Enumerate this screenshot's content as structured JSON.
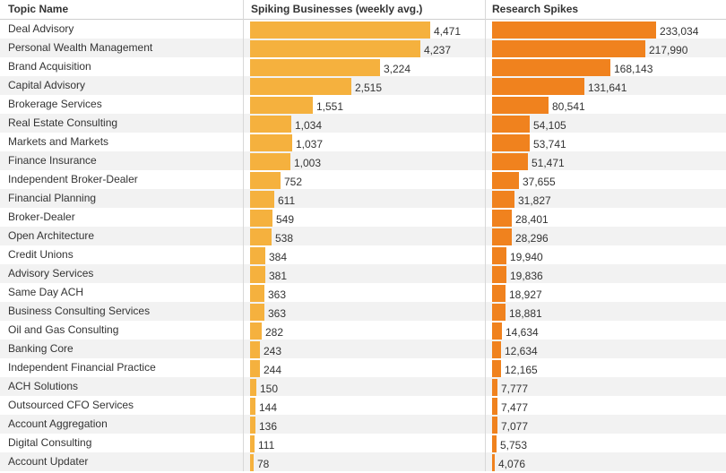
{
  "headers": {
    "topic": "Topic Name",
    "businesses": "Spiking Businesses (weekly avg.)",
    "research": "Research Spikes"
  },
  "colors": {
    "businesses_bar": "#f5b13e",
    "research_bar": "#f0821e",
    "row_stripe": "#f2f2f2"
  },
  "chart_data": {
    "type": "bar",
    "orientation": "horizontal",
    "categories": [
      "Deal Advisory",
      "Personal Wealth Management",
      "Brand Acquisition",
      "Capital Advisory",
      "Brokerage Services",
      "Real Estate Consulting",
      "Markets and Markets",
      "Finance Insurance",
      "Independent Broker-Dealer",
      "Financial Planning",
      "Broker-Dealer",
      "Open Architecture",
      "Credit Unions",
      "Advisory Services",
      "Same Day ACH",
      "Business Consulting Services",
      "Oil and Gas Consulting",
      "Banking Core",
      "Independent Financial Practice",
      "ACH Solutions",
      "Outsourced CFO Services",
      "Account Aggregation",
      "Digital Consulting",
      "Account Updater"
    ],
    "series": [
      {
        "name": "Spiking Businesses (weekly avg.)",
        "values": [
          4471,
          4237,
          3224,
          2515,
          1551,
          1034,
          1037,
          1003,
          752,
          611,
          549,
          538,
          384,
          381,
          363,
          363,
          282,
          243,
          244,
          150,
          144,
          136,
          111,
          78
        ],
        "labels": [
          "4,471",
          "4,237",
          "3,224",
          "2,515",
          "1,551",
          "1,034",
          "1,037",
          "1,003",
          "752",
          "611",
          "549",
          "538",
          "384",
          "381",
          "363",
          "363",
          "282",
          "243",
          "244",
          "150",
          "144",
          "136",
          "111",
          "78"
        ]
      },
      {
        "name": "Research Spikes",
        "values": [
          233034,
          217990,
          168143,
          131641,
          80541,
          54105,
          53741,
          51471,
          37655,
          31827,
          28401,
          28296,
          19940,
          19836,
          18927,
          18881,
          14634,
          12634,
          12165,
          7777,
          7477,
          7077,
          5753,
          4076
        ],
        "labels": [
          "233,034",
          "217,990",
          "168,143",
          "131,641",
          "80,541",
          "54,105",
          "53,741",
          "51,471",
          "37,655",
          "31,827",
          "28,401",
          "28,296",
          "19,940",
          "19,836",
          "18,927",
          "18,881",
          "14,634",
          "12,634",
          "12,165",
          "7,777",
          "7,477",
          "7,077",
          "5,753",
          "4,076"
        ]
      }
    ],
    "xlim_businesses": [
      0,
      4471
    ],
    "xlim_research": [
      0,
      233034
    ]
  }
}
